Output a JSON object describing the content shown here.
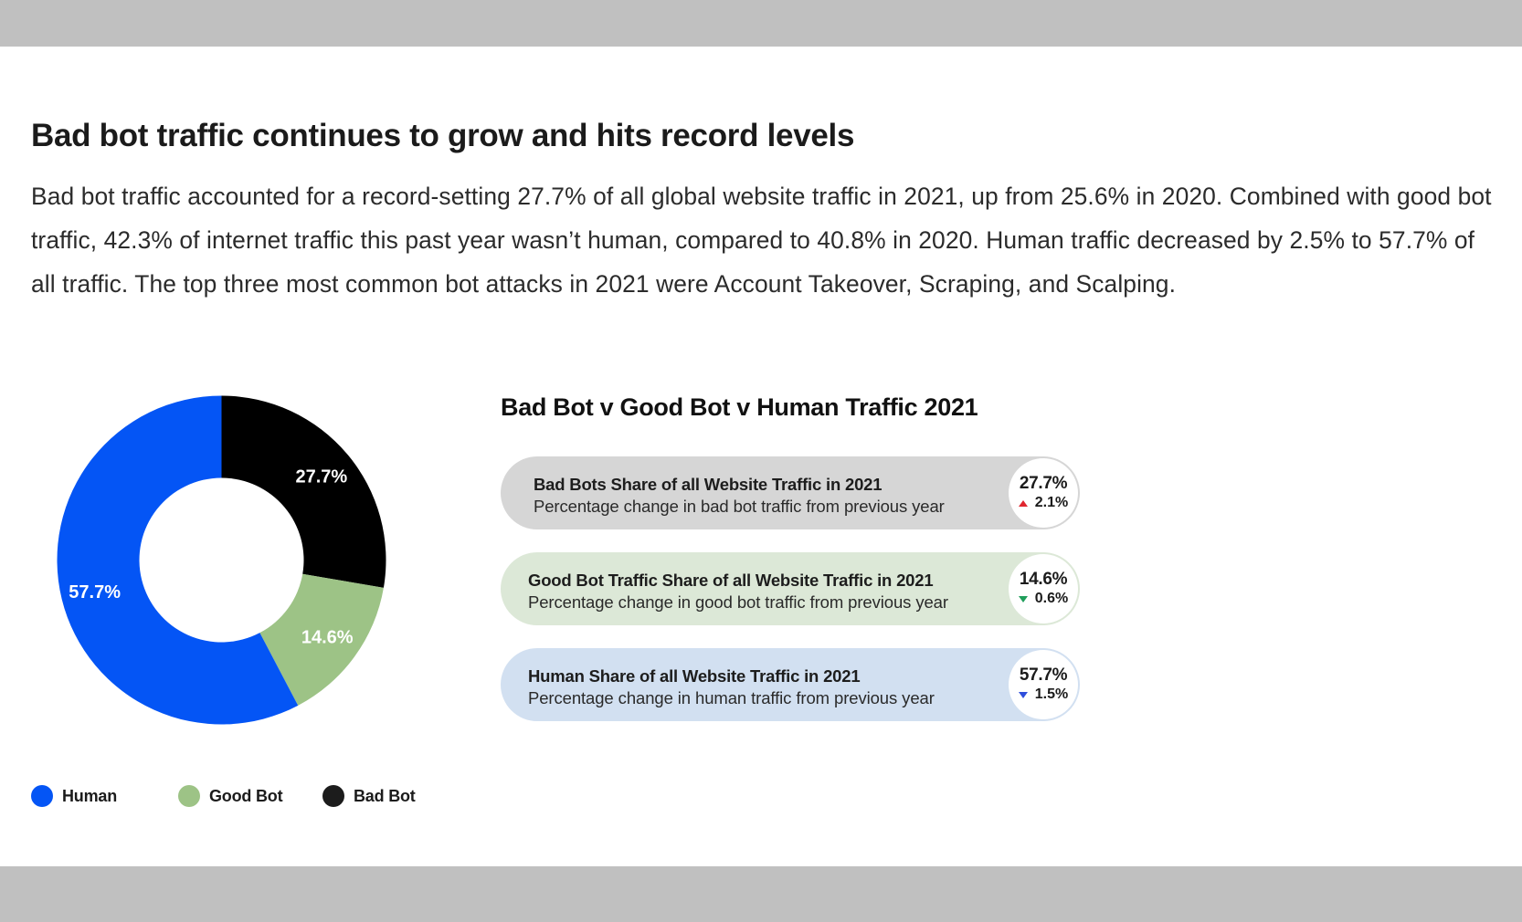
{
  "headline": "Bad bot traffic continues to grow and hits record levels",
  "paragraph": "Bad bot traffic accounted for a record-setting 27.7% of all global website traffic in 2021, up from 25.6% in 2020. Combined with good bot traffic, 42.3% of internet traffic this past year wasn’t human, compared to 40.8% in 2020. Human traffic decreased by 2.5% to 57.7% of all traffic. The top three most common bot attacks in 2021 were Account Takeover, Scraping, and Scalping.",
  "chart_data": {
    "type": "pie",
    "title": "",
    "donut": true,
    "categories": [
      "Human",
      "Good Bot",
      "Bad Bot"
    ],
    "values": [
      57.7,
      14.6,
      27.7
    ],
    "labels": [
      "57.7%",
      "14.6%",
      "27.7%"
    ],
    "colors": [
      "#0455f5",
      "#9dc386",
      "#000000"
    ],
    "legend": "bottom"
  },
  "legend": [
    {
      "label": "Human",
      "color": "#0455f5"
    },
    {
      "label": "Good Bot",
      "color": "#9dc386"
    },
    {
      "label": "Bad Bot",
      "color": "#1c1c1c"
    }
  ],
  "panel": {
    "title": "Bad Bot v Good Bot v Human Traffic 2021",
    "pills": [
      {
        "title": "Bad Bots Share of all Website Traffic in 2021",
        "subtitle": "Percentage change in bad bot traffic from previous year",
        "value": "27.7%",
        "change": "2.1%",
        "direction": "up",
        "background": "#d6d6d6",
        "arrow_color": "#e0262f"
      },
      {
        "title": "Good Bot Traffic Share of all Website Traffic in 2021",
        "subtitle": "Percentage change in good bot traffic from previous year",
        "value": "14.6%",
        "change": "0.6%",
        "direction": "down",
        "background": "#dce8d7",
        "arrow_color": "#1f9e5a"
      },
      {
        "title": "Human Share of all Website Traffic in 2021",
        "subtitle": "Percentage change in human traffic from previous year",
        "value": "57.7%",
        "change": "1.5%",
        "direction": "down",
        "background": "#d2e0f1",
        "arrow_color": "#2f4fdc"
      }
    ]
  }
}
